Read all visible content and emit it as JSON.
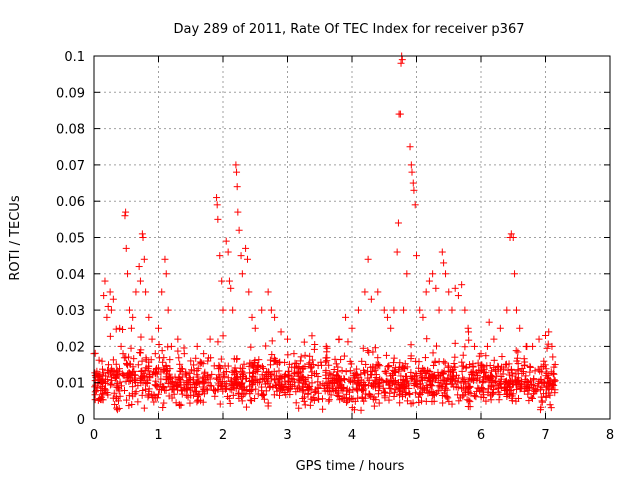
{
  "chart_data": {
    "type": "scatter",
    "title": "Day 289 of 2011, Rate Of TEC Index for receiver p367",
    "xlabel": "GPS time / hours",
    "ylabel": "ROTI / TECUs",
    "xlim": [
      0,
      8
    ],
    "ylim": [
      0,
      0.1
    ],
    "xticks": [
      0,
      1,
      2,
      3,
      4,
      5,
      6,
      7,
      8
    ],
    "xtick_labels": [
      "0",
      "1",
      "2",
      "3",
      "4",
      "5",
      "6",
      "7",
      "8"
    ],
    "yticks": [
      0,
      0.01,
      0.02,
      0.03,
      0.04,
      0.05,
      0.06,
      0.07,
      0.08,
      0.09,
      0.1
    ],
    "ytick_labels": [
      "0",
      "0.01",
      "0.02",
      "0.03",
      "0.04",
      "0.05",
      "0.06",
      "0.07",
      "0.08",
      "0.09",
      "0.1"
    ],
    "grid": true,
    "marker": "plus",
    "color": "#ff0000",
    "series": [
      {
        "name": "ROTI",
        "points": [
          [
            0.0,
            0.018
          ],
          [
            0.02,
            0.012
          ],
          [
            0.12,
            0.011
          ],
          [
            0.15,
            0.034
          ],
          [
            0.17,
            0.038
          ],
          [
            0.2,
            0.028
          ],
          [
            0.22,
            0.031
          ],
          [
            0.25,
            0.035
          ],
          [
            0.27,
            0.03
          ],
          [
            0.3,
            0.033
          ],
          [
            0.32,
            0.004
          ],
          [
            0.35,
            0.003
          ],
          [
            0.38,
            0.005
          ],
          [
            0.42,
            0.02
          ],
          [
            0.45,
            0.018
          ],
          [
            0.48,
            0.056
          ],
          [
            0.49,
            0.057
          ],
          [
            0.5,
            0.047
          ],
          [
            0.52,
            0.04
          ],
          [
            0.55,
            0.03
          ],
          [
            0.58,
            0.025
          ],
          [
            0.6,
            0.028
          ],
          [
            0.65,
            0.035
          ],
          [
            0.7,
            0.042
          ],
          [
            0.72,
            0.038
          ],
          [
            0.75,
            0.051
          ],
          [
            0.76,
            0.05
          ],
          [
            0.78,
            0.044
          ],
          [
            0.8,
            0.035
          ],
          [
            0.85,
            0.028
          ],
          [
            0.9,
            0.022
          ],
          [
            0.95,
            0.018
          ],
          [
            1.0,
            0.025
          ],
          [
            1.05,
            0.035
          ],
          [
            1.1,
            0.044
          ],
          [
            1.12,
            0.04
          ],
          [
            1.15,
            0.03
          ],
          [
            1.2,
            0.02
          ],
          [
            1.3,
            0.022
          ],
          [
            1.4,
            0.018
          ],
          [
            1.5,
            0.016
          ],
          [
            1.6,
            0.02
          ],
          [
            1.7,
            0.018
          ],
          [
            1.8,
            0.022
          ],
          [
            1.9,
            0.061
          ],
          [
            1.91,
            0.059
          ],
          [
            1.92,
            0.055
          ],
          [
            1.95,
            0.045
          ],
          [
            1.98,
            0.038
          ],
          [
            2.0,
            0.03
          ],
          [
            2.05,
            0.049
          ],
          [
            2.08,
            0.046
          ],
          [
            2.1,
            0.038
          ],
          [
            2.12,
            0.036
          ],
          [
            2.15,
            0.03
          ],
          [
            2.2,
            0.07
          ],
          [
            2.21,
            0.068
          ],
          [
            2.22,
            0.064
          ],
          [
            2.23,
            0.057
          ],
          [
            2.25,
            0.052
          ],
          [
            2.28,
            0.045
          ],
          [
            2.3,
            0.04
          ],
          [
            2.35,
            0.047
          ],
          [
            2.38,
            0.044
          ],
          [
            2.4,
            0.035
          ],
          [
            2.45,
            0.028
          ],
          [
            2.5,
            0.025
          ],
          [
            2.6,
            0.03
          ],
          [
            2.7,
            0.035
          ],
          [
            2.75,
            0.03
          ],
          [
            2.8,
            0.028
          ],
          [
            2.9,
            0.024
          ],
          [
            3.0,
            0.022
          ],
          [
            3.1,
            0.018
          ],
          [
            3.2,
            0.016
          ],
          [
            3.4,
            0.015
          ],
          [
            3.6,
            0.02
          ],
          [
            3.8,
            0.022
          ],
          [
            3.9,
            0.028
          ],
          [
            4.0,
            0.025
          ],
          [
            4.1,
            0.03
          ],
          [
            4.2,
            0.035
          ],
          [
            4.25,
            0.044
          ],
          [
            4.3,
            0.033
          ],
          [
            4.4,
            0.035
          ],
          [
            4.5,
            0.03
          ],
          [
            4.55,
            0.028
          ],
          [
            4.6,
            0.025
          ],
          [
            4.65,
            0.03
          ],
          [
            4.7,
            0.046
          ],
          [
            4.72,
            0.054
          ],
          [
            4.73,
            0.084
          ],
          [
            4.75,
            0.084
          ],
          [
            4.76,
            0.098
          ],
          [
            4.77,
            0.1
          ],
          [
            4.78,
            0.099
          ],
          [
            4.8,
            0.03
          ],
          [
            4.85,
            0.04
          ],
          [
            4.9,
            0.075
          ],
          [
            4.92,
            0.07
          ],
          [
            4.93,
            0.068
          ],
          [
            4.95,
            0.065
          ],
          [
            4.96,
            0.063
          ],
          [
            4.98,
            0.059
          ],
          [
            5.0,
            0.045
          ],
          [
            5.05,
            0.03
          ],
          [
            5.1,
            0.028
          ],
          [
            5.15,
            0.035
          ],
          [
            5.2,
            0.038
          ],
          [
            5.25,
            0.04
          ],
          [
            5.3,
            0.036
          ],
          [
            5.35,
            0.03
          ],
          [
            5.4,
            0.046
          ],
          [
            5.42,
            0.043
          ],
          [
            5.45,
            0.04
          ],
          [
            5.5,
            0.035
          ],
          [
            5.55,
            0.03
          ],
          [
            5.6,
            0.036
          ],
          [
            5.65,
            0.034
          ],
          [
            5.7,
            0.037
          ],
          [
            5.75,
            0.03
          ],
          [
            5.8,
            0.025
          ],
          [
            5.9,
            0.02
          ],
          [
            6.0,
            0.018
          ],
          [
            6.1,
            0.02
          ],
          [
            6.2,
            0.022
          ],
          [
            6.3,
            0.025
          ],
          [
            6.4,
            0.03
          ],
          [
            6.45,
            0.05
          ],
          [
            6.47,
            0.051
          ],
          [
            6.5,
            0.05
          ],
          [
            6.52,
            0.04
          ],
          [
            6.55,
            0.03
          ],
          [
            6.6,
            0.025
          ],
          [
            6.7,
            0.02
          ],
          [
            6.8,
            0.02
          ],
          [
            6.9,
            0.022
          ],
          [
            7.0,
            0.023
          ],
          [
            7.05,
            0.024
          ],
          [
            7.1,
            0.02
          ],
          [
            7.15,
            0.015
          ]
        ],
        "dense_band": {
          "x_range": [
            0.0,
            7.15
          ],
          "y_center": 0.01,
          "y_spread": 0.008,
          "description": "dense cluster of markers near 0.005-0.02 across the whole time range"
        }
      }
    ]
  }
}
